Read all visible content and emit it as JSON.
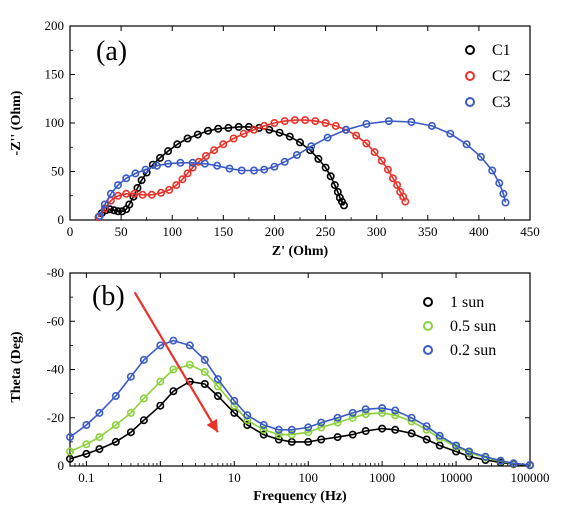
{
  "chart_data": [
    {
      "type": "scatter",
      "panel_label": "(a)",
      "xlabel": "Z' (Ohm)",
      "ylabel": "-Z'' (Ohm)",
      "xlim": [
        0,
        450
      ],
      "ylim": [
        0,
        200
      ],
      "xticks": [
        0,
        50,
        100,
        150,
        200,
        250,
        300,
        350,
        400,
        450
      ],
      "yticks": [
        0,
        50,
        100,
        150,
        200
      ],
      "legend_position": "top-right",
      "series": [
        {
          "name": "C1",
          "color": "#000000",
          "marker": "open-circle",
          "fit_line": true,
          "x": [
            28,
            31,
            35,
            39,
            43,
            47,
            51,
            55,
            58,
            62,
            66,
            70,
            75,
            81,
            88,
            96,
            105,
            115,
            125,
            135,
            145,
            155,
            165,
            175,
            185,
            195,
            205,
            215,
            225,
            235,
            243,
            250,
            255,
            259,
            262,
            264,
            266,
            268
          ],
          "y": [
            3,
            7,
            10,
            11,
            10,
            9,
            9,
            11,
            16,
            24,
            33,
            41,
            49,
            57,
            64,
            71,
            78,
            84,
            88,
            92,
            94,
            95,
            96,
            96,
            95,
            93,
            90,
            86,
            80,
            72,
            63,
            54,
            45,
            36,
            29,
            23,
            19,
            15
          ]
        },
        {
          "name": "C2",
          "color": "#e8322a",
          "marker": "open-circle",
          "fit_line": true,
          "x": [
            28,
            34,
            40,
            47,
            55,
            63,
            71,
            80,
            89,
            97,
            104,
            110,
            115,
            120,
            126,
            133,
            141,
            150,
            160,
            170,
            180,
            190,
            200,
            210,
            220,
            230,
            240,
            250,
            260,
            270,
            280,
            290,
            298,
            305,
            311,
            316,
            320,
            323,
            326,
            328
          ],
          "y": [
            3,
            12,
            20,
            25,
            27,
            27,
            26,
            26,
            28,
            31,
            36,
            42,
            48,
            54,
            60,
            66,
            72,
            78,
            84,
            89,
            93,
            97,
            100,
            102,
            103,
            103,
            102,
            100,
            97,
            93,
            87,
            79,
            70,
            61,
            52,
            43,
            36,
            29,
            24,
            19
          ]
        },
        {
          "name": "C3",
          "color": "#3b5bc4",
          "marker": "open-circle",
          "fit_line": true,
          "x": [
            29,
            34,
            40,
            47,
            55,
            64,
            74,
            85,
            96,
            108,
            120,
            132,
            144,
            156,
            168,
            180,
            190,
            200,
            210,
            222,
            236,
            252,
            270,
            290,
            312,
            334,
            354,
            372,
            388,
            402,
            413,
            420,
            424,
            426
          ],
          "y": [
            4,
            16,
            27,
            36,
            43,
            48,
            52,
            56,
            58,
            59,
            59,
            58,
            56,
            53,
            51,
            51,
            52,
            55,
            60,
            67,
            76,
            85,
            93,
            99,
            102,
            101,
            97,
            89,
            78,
            65,
            51,
            38,
            27,
            18
          ]
        }
      ]
    },
    {
      "type": "scatter",
      "panel_label": "(b)",
      "xlabel": "Frequency (Hz)",
      "ylabel": "Theta (Deg)",
      "xscale": "log",
      "xlim": [
        0.06,
        100000
      ],
      "ylim": [
        0,
        -80
      ],
      "xticks": [
        0.1,
        1,
        10,
        100,
        1000,
        10000,
        100000
      ],
      "xticklabels": [
        "0.1",
        "1",
        "10",
        "100",
        "1000",
        "10000",
        "100000"
      ],
      "yticks": [
        0,
        -20,
        -40,
        -60,
        -80
      ],
      "yticklabels": [
        "0",
        "-20",
        "-40",
        "-60",
        "-80"
      ],
      "legend_position": "top-right",
      "annotation": {
        "type": "arrow",
        "color": "#e8322a",
        "from": [
          0.45,
          -72
        ],
        "to": [
          6,
          -14
        ]
      },
      "series": [
        {
          "name": "1 sun",
          "color": "#000000",
          "marker": "open-circle",
          "fit_line": true,
          "x": [
            0.06,
            0.1,
            0.15,
            0.25,
            0.4,
            0.6,
            1,
            1.5,
            2.5,
            4,
            6,
            10,
            15,
            25,
            40,
            60,
            100,
            150,
            250,
            400,
            600,
            1000,
            1500,
            2500,
            4000,
            6000,
            10000,
            15000,
            25000,
            40000,
            60000,
            100000
          ],
          "y": [
            -3,
            -5,
            -7,
            -10,
            -14,
            -19,
            -25,
            -31,
            -35,
            -34,
            -29,
            -22,
            -17,
            -13,
            -11,
            -10,
            -10,
            -11,
            -12,
            -13,
            -14.5,
            -15.5,
            -15,
            -13.5,
            -11,
            -8.5,
            -6,
            -4,
            -2.5,
            -1.5,
            -0.8,
            -0.3
          ]
        },
        {
          "name": "0.5 sun",
          "color": "#8cd23c",
          "marker": "open-circle",
          "fit_line": true,
          "x": [
            0.06,
            0.1,
            0.15,
            0.25,
            0.4,
            0.6,
            1,
            1.5,
            2.5,
            4,
            6,
            10,
            15,
            25,
            40,
            60,
            100,
            150,
            250,
            400,
            600,
            1000,
            1500,
            2500,
            4000,
            6000,
            10000,
            15000,
            25000,
            40000,
            60000,
            100000
          ],
          "y": [
            -6,
            -9,
            -12,
            -17,
            -22,
            -28,
            -35,
            -40,
            -42,
            -39,
            -33,
            -25,
            -19,
            -15,
            -13,
            -13,
            -14,
            -16,
            -18,
            -20,
            -21.5,
            -22,
            -21,
            -18.5,
            -15,
            -11.5,
            -8,
            -5.5,
            -3.5,
            -2,
            -1,
            -0.4
          ]
        },
        {
          "name": "0.2 sun",
          "color": "#3b5bc4",
          "marker": "open-circle",
          "fit_line": true,
          "x": [
            0.06,
            0.1,
            0.15,
            0.25,
            0.4,
            0.6,
            1,
            1.5,
            2.5,
            4,
            6,
            10,
            15,
            25,
            40,
            60,
            100,
            150,
            250,
            400,
            600,
            1000,
            1500,
            2500,
            4000,
            6000,
            10000,
            15000,
            25000,
            40000,
            60000,
            100000
          ],
          "y": [
            -12,
            -17,
            -22,
            -29,
            -37,
            -44,
            -50,
            -52,
            -50,
            -44,
            -36,
            -27,
            -21,
            -17,
            -15,
            -15,
            -16,
            -18,
            -20,
            -22,
            -23.5,
            -24,
            -23,
            -20,
            -16.5,
            -12.5,
            -8.5,
            -6,
            -3.8,
            -2.2,
            -1.1,
            -0.4
          ]
        }
      ]
    }
  ]
}
